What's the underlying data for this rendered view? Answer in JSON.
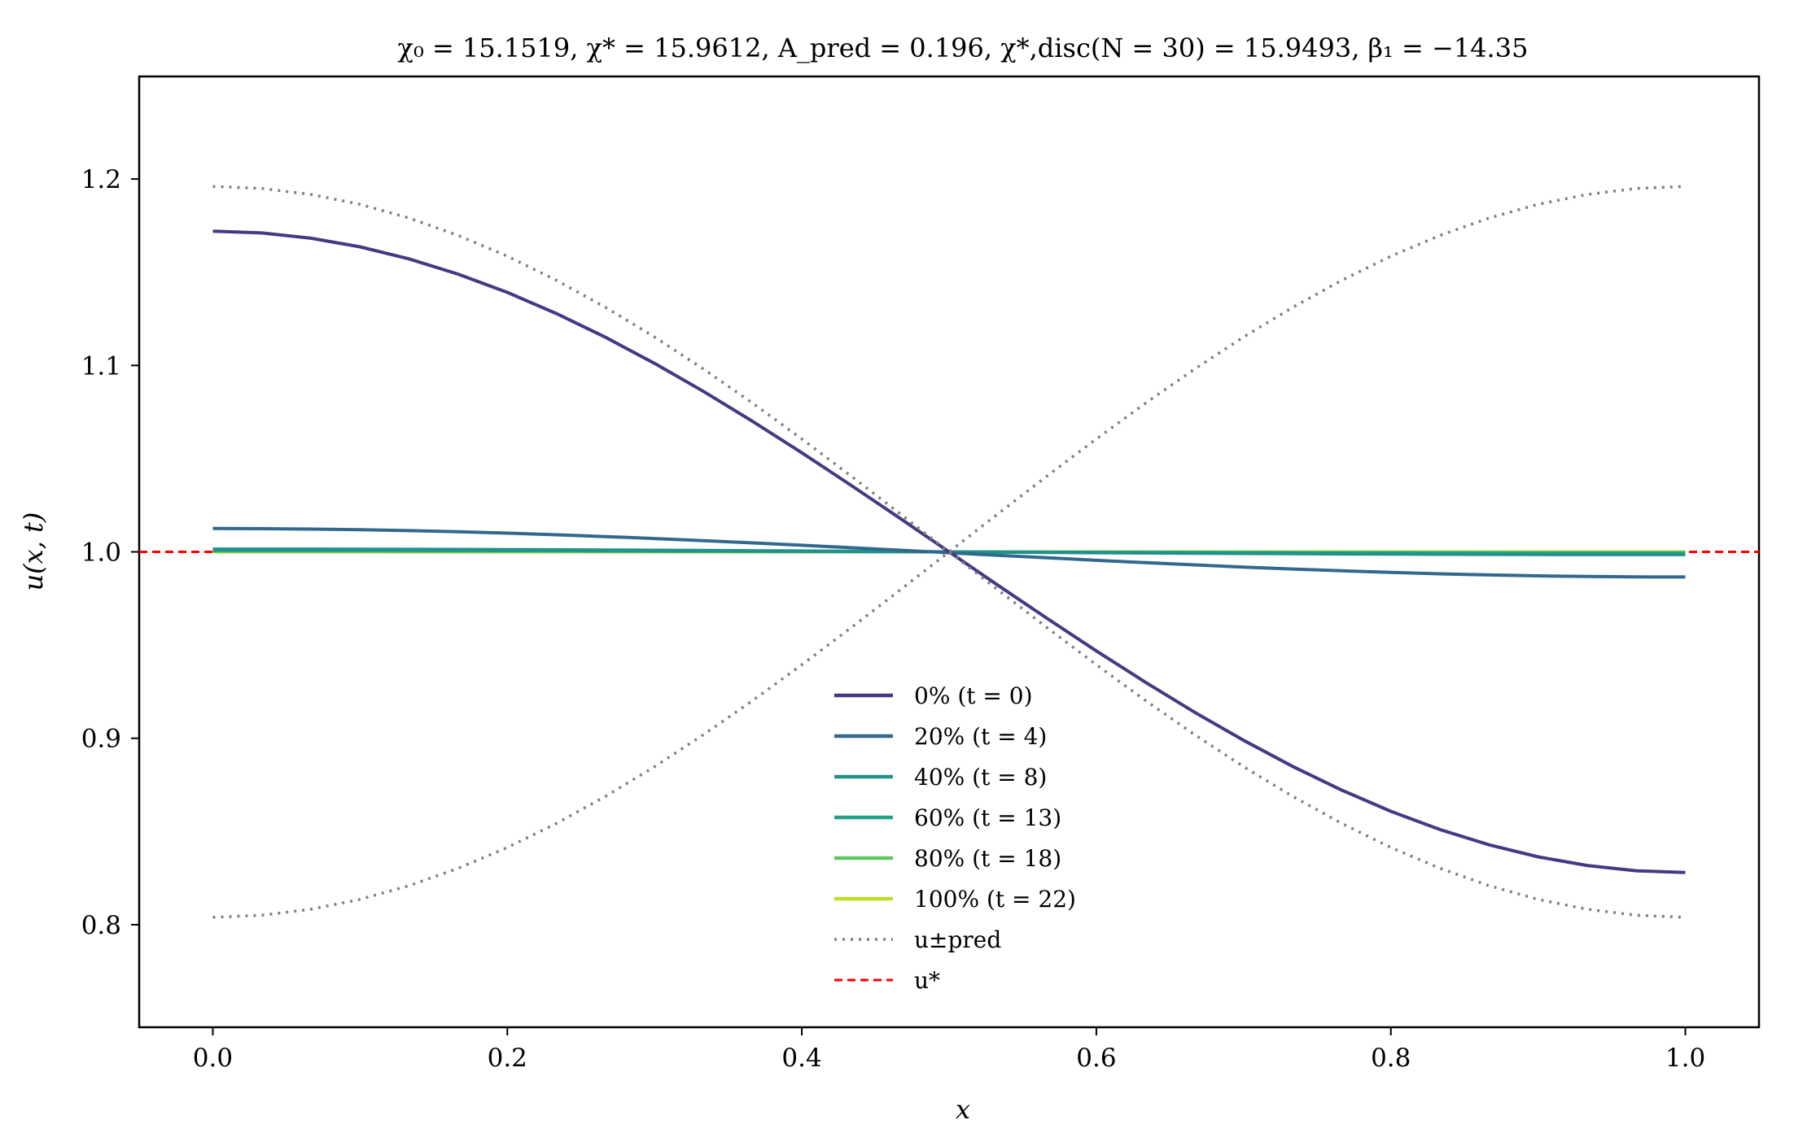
{
  "chart_data": {
    "type": "line",
    "title": "χ₀ = 15.1519,  χ* = 15.9612,  A_pred = 0.196,  χ*,disc(N = 30) = 15.9493,  β₁ = −14.35",
    "xlabel": "x",
    "ylabel": "u(x, t)",
    "xlim": [
      -0.05,
      1.05
    ],
    "ylim": [
      0.745,
      1.255
    ],
    "x_ticks": [
      "0.0",
      "0.2",
      "0.4",
      "0.6",
      "0.8",
      "1.0"
    ],
    "y_ticks": [
      "0.8",
      "0.9",
      "1.0",
      "1.1",
      "1.2"
    ],
    "grid": false,
    "legend_position": "lower center",
    "series": [
      {
        "name": "0% (t = 0)",
        "color": "#443983",
        "style": "solid",
        "amplitude": 0.172,
        "shape": "cosine"
      },
      {
        "name": "20% (t = 4)",
        "color": "#31688e",
        "style": "solid",
        "amplitude": 0.0125,
        "shape": "cosine-asym"
      },
      {
        "name": "40% (t = 8)",
        "color": "#21918c",
        "style": "solid",
        "amplitude": 0.0015,
        "shape": "cosine"
      },
      {
        "name": "60% (t = 13)",
        "color": "#1fa187",
        "style": "solid",
        "amplitude": 0.0008,
        "shape": "cosine"
      },
      {
        "name": "80% (t = 18)",
        "color": "#5ec962",
        "style": "solid",
        "amplitude": 0.0004,
        "shape": "cosine"
      },
      {
        "name": "100% (t = 22)",
        "color": "#bddf26",
        "style": "solid",
        "amplitude": 0.0,
        "shape": "cosine"
      },
      {
        "name": "u±pred",
        "color": "#808080",
        "style": "dotted",
        "amplitude": 0.196,
        "shape": "cosine-pair"
      },
      {
        "name": "u*",
        "color": "#ff0000",
        "style": "dashed",
        "value": 1.0,
        "shape": "horizontal"
      }
    ],
    "x_values": [
      0.0,
      0.0333,
      0.0667,
      0.1,
      0.1333,
      0.1667,
      0.2,
      0.2333,
      0.2667,
      0.3,
      0.3333,
      0.3667,
      0.4,
      0.4333,
      0.4667,
      0.5,
      0.5333,
      0.5667,
      0.6,
      0.6333,
      0.6667,
      0.7,
      0.7333,
      0.7667,
      0.8,
      0.8333,
      0.8667,
      0.9,
      0.9333,
      0.9667,
      1.0
    ]
  }
}
